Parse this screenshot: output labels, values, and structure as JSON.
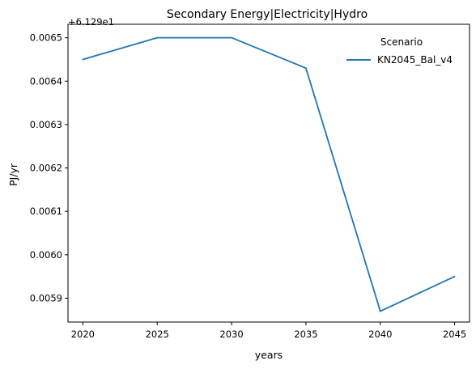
{
  "chart_data": {
    "type": "line",
    "title": "Secondary Energy|Electricity|Hydro",
    "xlabel": "years",
    "ylabel": "PJ/yr",
    "offset_text": "+6.129e1",
    "x": [
      2020,
      2025,
      2030,
      2035,
      2040,
      2045
    ],
    "x_ticks": [
      "2020",
      "2025",
      "2030",
      "2035",
      "2040",
      "2045"
    ],
    "y_ticks": [
      "0.0059",
      "0.0060",
      "0.0061",
      "0.0062",
      "0.0063",
      "0.0064",
      "0.0065"
    ],
    "y_tick_values": [
      0.0059,
      0.006,
      0.0061,
      0.0062,
      0.0063,
      0.0064,
      0.0065
    ],
    "xlim": [
      2019.0,
      2046.0
    ],
    "ylim": [
      0.005845,
      0.006531
    ],
    "grid": false,
    "legend": {
      "title": "Scenario",
      "placement": "top-right"
    },
    "series": [
      {
        "name": "KN2045_Bal_v4",
        "color": "#1f77b4",
        "values": [
          0.00645,
          0.0065,
          0.0065,
          0.00643,
          0.00587,
          0.00595
        ]
      }
    ]
  }
}
